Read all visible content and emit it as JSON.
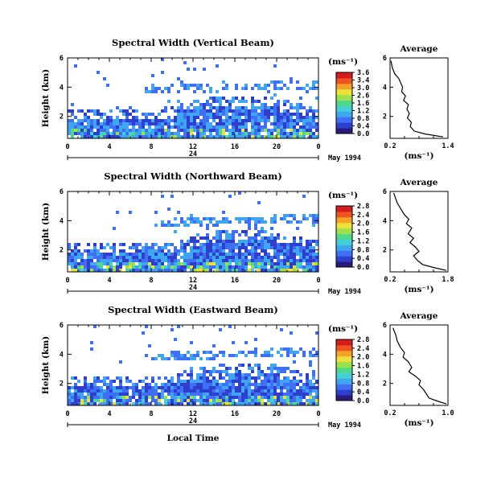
{
  "figure": {
    "x_axis_label": "Local Time",
    "date_label": "May 1994",
    "midnight_label": "24"
  },
  "colorscale": [
    "#2a1a7c",
    "#2d3fcc",
    "#3f6ff5",
    "#3fa6f2",
    "#43d0d6",
    "#4fd98f",
    "#9de04a",
    "#e8e23a",
    "#f6a227",
    "#ee5420",
    "#d61d1d"
  ],
  "chart_data": [
    {
      "type": "heatmap",
      "panel": "vertical",
      "title": "Spectral Width (Vertical Beam)",
      "ylabel": "Height (km)",
      "xlim": [
        0,
        24
      ],
      "ylim": [
        0.5,
        6
      ],
      "x_ticks": [
        "0",
        "4",
        "8",
        "12",
        "16",
        "20",
        "0"
      ],
      "y_ticks": [
        "6",
        "4",
        "2"
      ],
      "colorbar": {
        "unit": "(ms⁻¹)",
        "ticks": [
          "3.6",
          "3.4",
          "3.0",
          "2.6",
          "1.6",
          "1.2",
          "0.8",
          "0.4",
          "0.0"
        ]
      },
      "profile": {
        "title": "Average",
        "xlabel": "(ms⁻¹)",
        "xlim": [
          0.2,
          1.4
        ],
        "x_ticks": [
          "0.2",
          "1.4"
        ],
        "y_ticks": [
          "6",
          "4",
          "2"
        ],
        "points": [
          [
            0.22,
            5.8
          ],
          [
            0.25,
            5.3
          ],
          [
            0.3,
            4.9
          ],
          [
            0.38,
            4.6
          ],
          [
            0.42,
            4.3
          ],
          [
            0.46,
            4.0
          ],
          [
            0.44,
            3.7
          ],
          [
            0.52,
            3.4
          ],
          [
            0.48,
            3.1
          ],
          [
            0.58,
            2.8
          ],
          [
            0.55,
            2.5
          ],
          [
            0.6,
            2.2
          ],
          [
            0.56,
            1.9
          ],
          [
            0.64,
            1.6
          ],
          [
            0.62,
            1.3
          ],
          [
            0.7,
            1.0
          ],
          [
            0.92,
            0.8
          ],
          [
            1.3,
            0.6
          ]
        ]
      }
    },
    {
      "type": "heatmap",
      "panel": "northward",
      "title": "Spectral Width (Northward Beam)",
      "ylabel": "Height (km)",
      "xlim": [
        0,
        24
      ],
      "ylim": [
        0.5,
        6
      ],
      "x_ticks": [
        "0",
        "4",
        "8",
        "12",
        "16",
        "20",
        "0"
      ],
      "y_ticks": [
        "6",
        "4",
        "2"
      ],
      "colorbar": {
        "unit": "(ms⁻¹)",
        "ticks": [
          "2.8",
          "2.4",
          "2.0",
          "1.6",
          "1.2",
          "0.8",
          "0.4",
          "0.0"
        ]
      },
      "profile": {
        "title": "Average",
        "xlabel": "(ms⁻¹)",
        "xlim": [
          0.2,
          1.8
        ],
        "x_ticks": [
          "0.2",
          "1.8"
        ],
        "y_ticks": [
          "6",
          "4",
          "2"
        ],
        "points": [
          [
            0.3,
            5.9
          ],
          [
            0.4,
            5.2
          ],
          [
            0.5,
            4.8
          ],
          [
            0.6,
            4.4
          ],
          [
            0.72,
            4.1
          ],
          [
            0.65,
            3.8
          ],
          [
            0.8,
            3.5
          ],
          [
            0.7,
            3.1
          ],
          [
            0.85,
            2.8
          ],
          [
            0.75,
            2.5
          ],
          [
            0.9,
            2.2
          ],
          [
            1.0,
            1.9
          ],
          [
            0.85,
            1.6
          ],
          [
            0.95,
            1.3
          ],
          [
            1.1,
            1.0
          ],
          [
            1.4,
            0.8
          ],
          [
            1.75,
            0.6
          ]
        ]
      }
    },
    {
      "type": "heatmap",
      "panel": "eastward",
      "title": "Spectral Width (Eastward Beam)",
      "ylabel": "Height (km)",
      "xlim": [
        0,
        24
      ],
      "ylim": [
        0.5,
        6
      ],
      "x_ticks": [
        "0",
        "4",
        "8",
        "12",
        "16",
        "20",
        "0"
      ],
      "y_ticks": [
        "6",
        "4",
        "2"
      ],
      "colorbar": {
        "unit": "(ms⁻¹)",
        "ticks": [
          "2.8",
          "2.4",
          "2.0",
          "1.6",
          "1.2",
          "0.8",
          "0.4",
          "0.0"
        ]
      },
      "profile": {
        "title": "Average",
        "xlabel": "(ms⁻¹)",
        "xlim": [
          0.2,
          1.0
        ],
        "x_ticks": [
          "0.2",
          "1.0"
        ],
        "y_ticks": [
          "6",
          "4",
          "2"
        ],
        "points": [
          [
            0.24,
            5.8
          ],
          [
            0.28,
            5.3
          ],
          [
            0.3,
            4.9
          ],
          [
            0.34,
            4.5
          ],
          [
            0.4,
            4.1
          ],
          [
            0.38,
            3.8
          ],
          [
            0.45,
            3.5
          ],
          [
            0.5,
            3.1
          ],
          [
            0.46,
            2.8
          ],
          [
            0.55,
            2.5
          ],
          [
            0.62,
            2.2
          ],
          [
            0.6,
            1.9
          ],
          [
            0.66,
            1.6
          ],
          [
            0.7,
            1.3
          ],
          [
            0.74,
            1.0
          ],
          [
            0.85,
            0.8
          ],
          [
            0.98,
            0.6
          ]
        ]
      }
    }
  ]
}
